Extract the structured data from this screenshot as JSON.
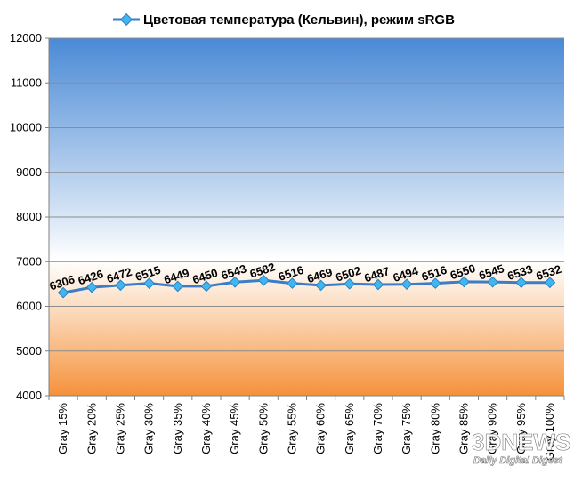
{
  "chart_data": {
    "type": "line",
    "title": "",
    "xlabel": "",
    "ylabel": "",
    "categories": [
      "Gray 15%",
      "Gray 20%",
      "Gray 25%",
      "Gray 30%",
      "Gray 35%",
      "Gray 40%",
      "Gray 45%",
      "Gray 50%",
      "Gray 55%",
      "Gray 60%",
      "Gray 65%",
      "Gray 70%",
      "Gray 75%",
      "Gray 80%",
      "Gray 85%",
      "Gray 90%",
      "Gray 95%",
      "Gray 100%"
    ],
    "series": [
      {
        "name": "Цветовая температура (Кельвин), режим sRGB",
        "values": [
          6306,
          6426,
          6472,
          6515,
          6449,
          6450,
          6543,
          6582,
          6516,
          6469,
          6502,
          6487,
          6494,
          6516,
          6550,
          6545,
          6533,
          6532
        ],
        "color": "#3d7dc8"
      }
    ],
    "ylim": [
      4000,
      12000
    ],
    "yticks": [
      4000,
      5000,
      6000,
      7000,
      8000,
      9000,
      10000,
      11000,
      12000
    ],
    "grid": true,
    "legend_position": "top",
    "background": {
      "top_color": "#4a8ad6",
      "middle_color": "#ffffff",
      "bottom_color": "#f5913a"
    }
  },
  "watermark": {
    "logo": "3DNEWS",
    "tagline": "Daily Digital Digest"
  }
}
